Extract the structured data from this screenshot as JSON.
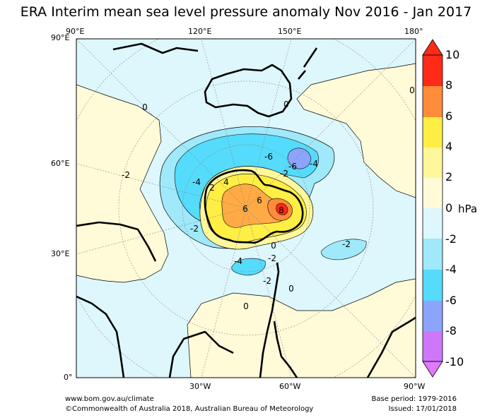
{
  "title": "ERA Interim mean sea level pressure anomaly Nov 2016 - Jan 2017",
  "axes": {
    "top": [
      "90°E",
      "120°E",
      "150°E",
      "180°"
    ],
    "left": [
      "90°E",
      "60°E",
      "30°E",
      "0°"
    ],
    "bottom": [
      "30°W",
      "60°W",
      "90°W"
    ]
  },
  "contour_labels": [
    "0",
    "0",
    "0",
    "0",
    "0",
    "-2",
    "-2",
    "-2",
    "-2",
    "-4",
    "-4",
    "-4",
    "-6",
    "-6",
    "2",
    "4",
    "6",
    "8",
    "6",
    "0",
    "-2",
    "-2"
  ],
  "colorbar": {
    "unit": "hPa",
    "ticks": [
      "10",
      "8",
      "6",
      "4",
      "2",
      "0",
      "-2",
      "-4",
      "-6",
      "-8",
      "-10"
    ],
    "colors": [
      "#ff2a17",
      "#ff8c3a",
      "#ffaa44",
      "#ffee44",
      "#fff799",
      "#fffad8",
      "#ddf7fd",
      "#9fe9fb",
      "#55dbfb",
      "#8ca4fb",
      "#cf77fb",
      "#e07afb"
    ]
  },
  "footer": {
    "left1": "www.bom.gov.au/climate",
    "left2": "©Commonwealth of Australia 2018, Australian Bureau of Meteorology",
    "right1": "Base period: 1979-2016",
    "right2": "Issued: 17/01/2018"
  }
}
